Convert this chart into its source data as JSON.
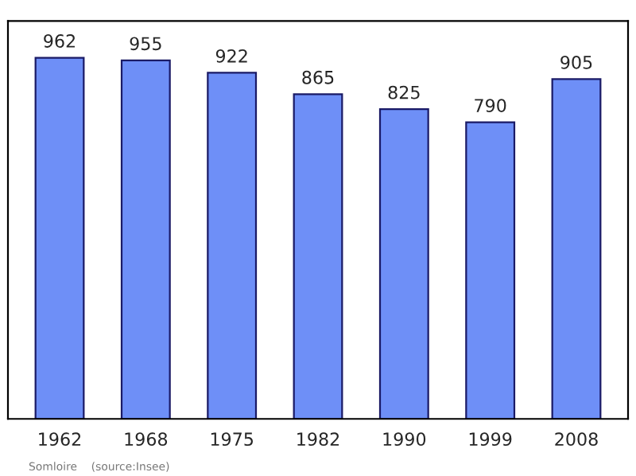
{
  "chart_data": {
    "type": "bar",
    "categories": [
      "1962",
      "1968",
      "1975",
      "1982",
      "1990",
      "1999",
      "2008"
    ],
    "values": [
      962,
      955,
      922,
      865,
      825,
      790,
      905
    ],
    "color": "#6e8ff7",
    "data_labels": true,
    "ylim": [
      0,
      1060
    ],
    "grid": false,
    "legend": false,
    "annotations": [
      "Somloire    (source:Insee)"
    ]
  }
}
